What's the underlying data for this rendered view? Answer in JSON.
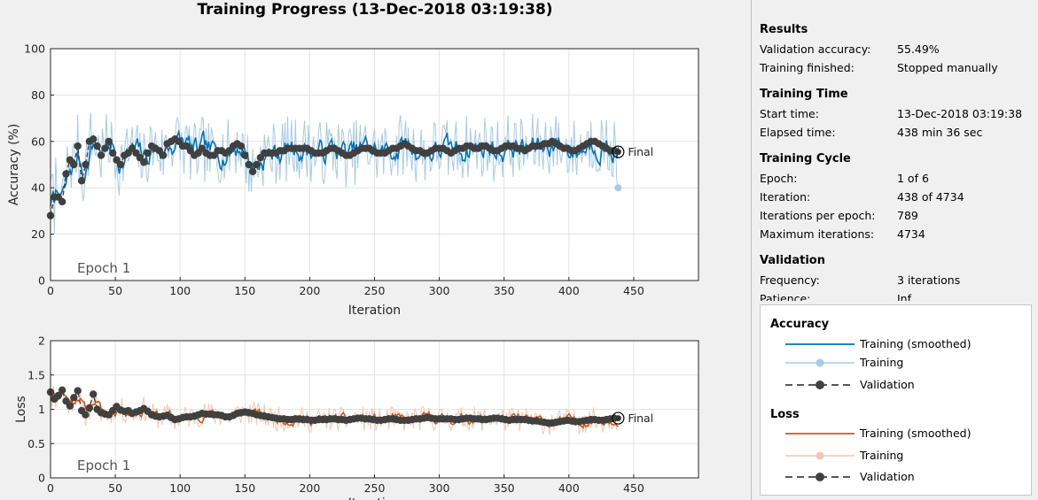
{
  "title": "Training Progress (13-Dec-2018 03:19:38)",
  "colors": {
    "acc_smoothed": "#0072BD",
    "acc_raw": "#A6CBE8",
    "loss_smoothed": "#D95319",
    "loss_raw": "#F4C7B3",
    "validation": "#404040"
  },
  "chart_data": [
    {
      "type": "line",
      "name": "accuracy",
      "ylabel": "Accuracy (%)",
      "xlabel": "Iteration",
      "xlim": [
        0,
        500
      ],
      "ylim": [
        0,
        100
      ],
      "xticks": [
        0,
        50,
        100,
        150,
        200,
        250,
        300,
        350,
        400,
        450
      ],
      "yticks": [
        0,
        20,
        40,
        60,
        80,
        100
      ],
      "epoch_label": "Epoch 1",
      "final_label": "Final",
      "final_value": 55.49,
      "last_training_value": 40,
      "grid": true,
      "validation_points": [
        [
          0,
          28
        ],
        [
          3,
          36
        ],
        [
          6,
          36
        ],
        [
          9,
          34
        ],
        [
          12,
          46
        ],
        [
          15,
          52
        ],
        [
          18,
          50
        ],
        [
          21,
          58
        ],
        [
          24,
          43
        ],
        [
          27,
          50
        ],
        [
          30,
          60
        ],
        [
          33,
          61
        ],
        [
          36,
          58
        ],
        [
          39,
          54
        ],
        [
          42,
          57
        ],
        [
          45,
          60
        ],
        [
          48,
          55
        ],
        [
          51,
          52
        ],
        [
          54,
          50
        ],
        [
          57,
          54
        ],
        [
          60,
          55
        ],
        [
          63,
          57
        ],
        [
          66,
          55
        ],
        [
          69,
          53
        ],
        [
          72,
          51
        ],
        [
          75,
          55
        ],
        [
          78,
          58
        ],
        [
          81,
          57
        ],
        [
          84,
          56
        ],
        [
          87,
          54
        ],
        [
          90,
          59
        ],
        [
          93,
          60
        ],
        [
          96,
          61
        ],
        [
          99,
          60
        ],
        [
          102,
          58
        ],
        [
          105,
          58
        ],
        [
          108,
          56
        ],
        [
          111,
          54
        ],
        [
          114,
          55
        ],
        [
          117,
          57
        ],
        [
          120,
          55
        ],
        [
          123,
          54
        ],
        [
          126,
          54
        ],
        [
          129,
          56
        ],
        [
          132,
          56
        ],
        [
          135,
          55
        ],
        [
          138,
          56
        ],
        [
          141,
          58
        ],
        [
          144,
          59
        ],
        [
          147,
          58
        ],
        [
          150,
          54
        ],
        [
          153,
          50
        ],
        [
          156,
          47
        ],
        [
          159,
          50
        ],
        [
          162,
          53
        ],
        [
          165,
          55
        ],
        [
          168,
          55
        ],
        [
          171,
          55
        ],
        [
          174,
          55
        ],
        [
          177,
          56
        ],
        [
          180,
          56
        ],
        [
          183,
          57
        ],
        [
          186,
          57
        ],
        [
          189,
          57
        ],
        [
          192,
          57
        ],
        [
          195,
          57
        ],
        [
          198,
          57
        ],
        [
          201,
          56
        ],
        [
          204,
          55
        ],
        [
          207,
          55
        ],
        [
          210,
          55
        ],
        [
          213,
          56
        ],
        [
          216,
          57
        ],
        [
          219,
          57
        ],
        [
          222,
          56
        ],
        [
          225,
          55
        ],
        [
          228,
          54
        ],
        [
          231,
          54
        ],
        [
          234,
          55
        ],
        [
          237,
          56
        ],
        [
          240,
          57
        ],
        [
          243,
          57
        ],
        [
          246,
          57
        ],
        [
          249,
          56
        ],
        [
          252,
          55
        ],
        [
          255,
          55
        ],
        [
          258,
          55
        ],
        [
          261,
          56
        ],
        [
          264,
          57
        ],
        [
          267,
          57
        ],
        [
          270,
          58
        ],
        [
          273,
          59
        ],
        [
          276,
          58
        ],
        [
          279,
          57
        ],
        [
          282,
          56
        ],
        [
          285,
          56
        ],
        [
          288,
          55
        ],
        [
          291,
          55
        ],
        [
          294,
          56
        ],
        [
          297,
          57
        ],
        [
          300,
          57
        ],
        [
          303,
          57
        ],
        [
          306,
          56
        ],
        [
          309,
          55
        ],
        [
          312,
          56
        ],
        [
          315,
          57
        ],
        [
          318,
          57
        ],
        [
          321,
          58
        ],
        [
          324,
          58
        ],
        [
          327,
          57
        ],
        [
          330,
          57
        ],
        [
          333,
          58
        ],
        [
          336,
          58
        ],
        [
          339,
          57
        ],
        [
          342,
          56
        ],
        [
          345,
          56
        ],
        [
          348,
          57
        ],
        [
          351,
          58
        ],
        [
          354,
          58
        ],
        [
          357,
          58
        ],
        [
          360,
          57
        ],
        [
          363,
          57
        ],
        [
          366,
          56
        ],
        [
          369,
          57
        ],
        [
          372,
          58
        ],
        [
          375,
          58
        ],
        [
          378,
          58
        ],
        [
          381,
          59
        ],
        [
          384,
          59
        ],
        [
          387,
          60
        ],
        [
          390,
          59
        ],
        [
          393,
          58
        ],
        [
          396,
          57
        ],
        [
          399,
          57
        ],
        [
          402,
          56
        ],
        [
          405,
          56
        ],
        [
          408,
          57
        ],
        [
          411,
          58
        ],
        [
          414,
          59
        ],
        [
          417,
          60
        ],
        [
          420,
          60
        ],
        [
          423,
          59
        ],
        [
          426,
          58
        ],
        [
          429,
          57
        ],
        [
          432,
          56
        ],
        [
          435,
          56
        ]
      ]
    },
    {
      "type": "line",
      "name": "loss",
      "ylabel": "Loss",
      "xlabel": "Iteration",
      "xlim": [
        0,
        500
      ],
      "ylim": [
        0,
        2
      ],
      "xticks": [
        0,
        50,
        100,
        150,
        200,
        250,
        300,
        350,
        400,
        450
      ],
      "yticks": [
        0,
        0.5,
        1,
        1.5,
        2
      ],
      "epoch_label": "Epoch 1",
      "final_label": "Final",
      "final_value": 0.87,
      "grid": true,
      "validation_points": [
        [
          0,
          1.25
        ],
        [
          3,
          1.15
        ],
        [
          6,
          1.2
        ],
        [
          9,
          1.28
        ],
        [
          12,
          1.12
        ],
        [
          15,
          1.05
        ],
        [
          18,
          1.17
        ],
        [
          21,
          1.27
        ],
        [
          24,
          0.98
        ],
        [
          27,
          0.92
        ],
        [
          30,
          1.02
        ],
        [
          33,
          1.22
        ],
        [
          36,
          1.0
        ],
        [
          39,
          0.95
        ],
        [
          42,
          0.93
        ],
        [
          45,
          0.92
        ],
        [
          48,
          0.98
        ],
        [
          51,
          1.04
        ],
        [
          54,
          0.99
        ],
        [
          57,
          0.97
        ],
        [
          60,
          0.98
        ],
        [
          63,
          0.94
        ],
        [
          66,
          0.96
        ],
        [
          69,
          0.98
        ],
        [
          72,
          1.01
        ],
        [
          75,
          0.97
        ],
        [
          78,
          0.92
        ],
        [
          81,
          0.9
        ],
        [
          84,
          0.89
        ],
        [
          87,
          0.9
        ],
        [
          90,
          0.91
        ],
        [
          93,
          0.88
        ],
        [
          96,
          0.85
        ],
        [
          99,
          0.86
        ],
        [
          102,
          0.88
        ],
        [
          105,
          0.89
        ],
        [
          108,
          0.89
        ],
        [
          111,
          0.9
        ],
        [
          114,
          0.92
        ],
        [
          117,
          0.94
        ],
        [
          120,
          0.93
        ],
        [
          123,
          0.93
        ],
        [
          126,
          0.92
        ],
        [
          129,
          0.92
        ],
        [
          132,
          0.91
        ],
        [
          135,
          0.89
        ],
        [
          138,
          0.89
        ],
        [
          141,
          0.91
        ],
        [
          144,
          0.94
        ],
        [
          147,
          0.95
        ],
        [
          150,
          0.96
        ],
        [
          153,
          0.95
        ],
        [
          156,
          0.94
        ],
        [
          159,
          0.92
        ],
        [
          162,
          0.91
        ],
        [
          165,
          0.9
        ],
        [
          168,
          0.89
        ],
        [
          171,
          0.88
        ],
        [
          174,
          0.87
        ],
        [
          177,
          0.86
        ],
        [
          180,
          0.86
        ],
        [
          183,
          0.85
        ],
        [
          186,
          0.85
        ],
        [
          189,
          0.86
        ],
        [
          192,
          0.86
        ],
        [
          195,
          0.85
        ],
        [
          198,
          0.85
        ],
        [
          201,
          0.84
        ],
        [
          204,
          0.84
        ],
        [
          207,
          0.85
        ],
        [
          210,
          0.85
        ],
        [
          213,
          0.85
        ],
        [
          216,
          0.86
        ],
        [
          219,
          0.86
        ],
        [
          222,
          0.85
        ],
        [
          225,
          0.85
        ],
        [
          228,
          0.84
        ],
        [
          231,
          0.85
        ],
        [
          234,
          0.86
        ],
        [
          237,
          0.87
        ],
        [
          240,
          0.87
        ],
        [
          243,
          0.86
        ],
        [
          246,
          0.86
        ],
        [
          249,
          0.85
        ],
        [
          252,
          0.84
        ],
        [
          255,
          0.84
        ],
        [
          258,
          0.85
        ],
        [
          261,
          0.86
        ],
        [
          264,
          0.86
        ],
        [
          267,
          0.85
        ],
        [
          270,
          0.84
        ],
        [
          273,
          0.84
        ],
        [
          276,
          0.84
        ],
        [
          279,
          0.85
        ],
        [
          282,
          0.86
        ],
        [
          285,
          0.86
        ],
        [
          288,
          0.87
        ],
        [
          291,
          0.88
        ],
        [
          294,
          0.87
        ],
        [
          297,
          0.86
        ],
        [
          300,
          0.86
        ],
        [
          303,
          0.86
        ],
        [
          306,
          0.86
        ],
        [
          309,
          0.86
        ],
        [
          312,
          0.85
        ],
        [
          315,
          0.85
        ],
        [
          318,
          0.86
        ],
        [
          321,
          0.87
        ],
        [
          324,
          0.87
        ],
        [
          327,
          0.86
        ],
        [
          330,
          0.86
        ],
        [
          333,
          0.85
        ],
        [
          336,
          0.85
        ],
        [
          339,
          0.86
        ],
        [
          342,
          0.87
        ],
        [
          345,
          0.87
        ],
        [
          348,
          0.86
        ],
        [
          351,
          0.85
        ],
        [
          354,
          0.84
        ],
        [
          357,
          0.85
        ],
        [
          360,
          0.85
        ],
        [
          363,
          0.85
        ],
        [
          366,
          0.85
        ],
        [
          369,
          0.84
        ],
        [
          372,
          0.83
        ],
        [
          375,
          0.83
        ],
        [
          378,
          0.82
        ],
        [
          381,
          0.81
        ],
        [
          384,
          0.8
        ],
        [
          387,
          0.8
        ],
        [
          390,
          0.81
        ],
        [
          393,
          0.82
        ],
        [
          396,
          0.83
        ],
        [
          399,
          0.84
        ],
        [
          402,
          0.83
        ],
        [
          405,
          0.82
        ],
        [
          408,
          0.82
        ],
        [
          411,
          0.83
        ],
        [
          414,
          0.84
        ],
        [
          417,
          0.85
        ],
        [
          420,
          0.85
        ],
        [
          423,
          0.84
        ],
        [
          426,
          0.84
        ],
        [
          429,
          0.85
        ],
        [
          432,
          0.86
        ],
        [
          435,
          0.87
        ]
      ]
    }
  ],
  "results": {
    "heading": "Results",
    "rows": [
      {
        "label": "Validation accuracy:",
        "value": "55.49%"
      },
      {
        "label": "Training finished:",
        "value": "Stopped manually"
      }
    ]
  },
  "training_time": {
    "heading": "Training Time",
    "rows": [
      {
        "label": "Start time:",
        "value": "13-Dec-2018 03:19:38"
      },
      {
        "label": "Elapsed time:",
        "value": "438 min 36 sec"
      }
    ]
  },
  "training_cycle": {
    "heading": "Training Cycle",
    "rows": [
      {
        "label": "Epoch:",
        "value": "1 of 6"
      },
      {
        "label": "Iteration:",
        "value": "438 of 4734"
      },
      {
        "label": "Iterations per epoch:",
        "value": "789"
      },
      {
        "label": "Maximum iterations:",
        "value": "4734"
      }
    ]
  },
  "validation": {
    "heading": "Validation",
    "rows": [
      {
        "label": "Frequency:",
        "value": "3 iterations"
      },
      {
        "label": "Patience:",
        "value": "Inf"
      }
    ]
  },
  "legend": {
    "accuracy_heading": "Accuracy",
    "loss_heading": "Loss",
    "smoothed": "Training (smoothed)",
    "training": "Training",
    "validation": "Validation"
  }
}
